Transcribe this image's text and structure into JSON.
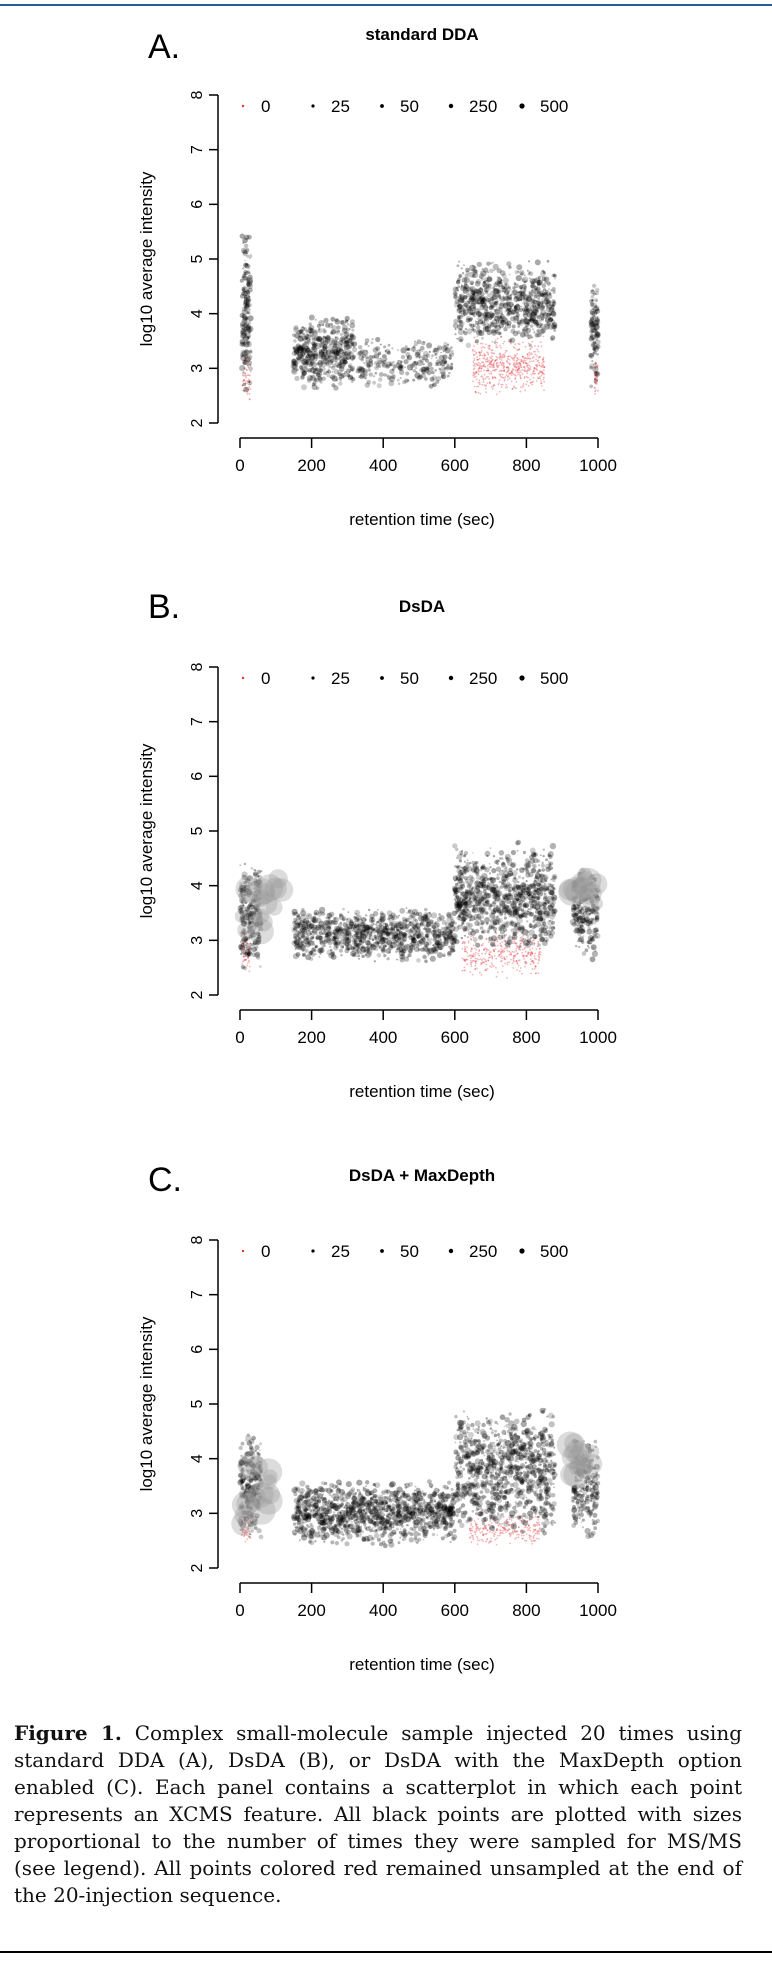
{
  "chart_data": [
    {
      "type": "scatter",
      "panel_letter": "A.",
      "title": "standard DDA",
      "xlabel": "retention time (sec)",
      "ylabel": "log10 average intensity",
      "xlim": [
        0,
        1000
      ],
      "ylim": [
        2,
        8
      ],
      "x_ticks": [
        0,
        200,
        400,
        600,
        800,
        1000
      ],
      "y_ticks": [
        2,
        3,
        4,
        5,
        6,
        7,
        8
      ],
      "grid": false,
      "legend_position": "top",
      "legend": [
        {
          "label": "0",
          "color": "#e0303a"
        },
        {
          "label": "25",
          "color": "#000000"
        },
        {
          "label": "50",
          "color": "#000000"
        },
        {
          "label": "250",
          "color": "#000000"
        },
        {
          "label": "500",
          "color": "#000000"
        }
      ],
      "clusters": [
        {
          "kind": "unsampled",
          "x_range": [
            650,
            850
          ],
          "y_range": [
            2.5,
            3.6
          ],
          "density": 550
        },
        {
          "kind": "unsampled",
          "x_range": [
            5,
            30
          ],
          "y_range": [
            2.4,
            3.3
          ],
          "density": 60
        },
        {
          "kind": "unsampled",
          "x_range": [
            990,
            1000
          ],
          "y_range": [
            2.4,
            3.2
          ],
          "density": 40
        },
        {
          "kind": "sampled",
          "x_range": [
            150,
            320
          ],
          "y_range": [
            2.6,
            4.0
          ],
          "density": 450
        },
        {
          "kind": "sampled",
          "x_range": [
            600,
            880
          ],
          "y_range": [
            3.4,
            5.0
          ],
          "density": 750
        },
        {
          "kind": "sampled",
          "x_range": [
            5,
            30
          ],
          "y_range": [
            2.6,
            5.5
          ],
          "density": 160
        },
        {
          "kind": "sampled",
          "x_range": [
            980,
            1000
          ],
          "y_range": [
            2.6,
            4.6
          ],
          "density": 100
        },
        {
          "kind": "sampled",
          "x_range": [
            330,
            600
          ],
          "y_range": [
            2.6,
            3.6
          ],
          "density": 250
        }
      ]
    },
    {
      "type": "scatter",
      "panel_letter": "B.",
      "title": "DsDA",
      "xlabel": "retention time (sec)",
      "ylabel": "log10 average intensity",
      "xlim": [
        0,
        1000
      ],
      "ylim": [
        2,
        8
      ],
      "x_ticks": [
        0,
        200,
        400,
        600,
        800,
        1000
      ],
      "y_ticks": [
        2,
        3,
        4,
        5,
        6,
        7,
        8
      ],
      "grid": false,
      "legend_position": "top",
      "legend": [
        {
          "label": "0",
          "color": "#e0303a"
        },
        {
          "label": "25",
          "color": "#000000"
        },
        {
          "label": "50",
          "color": "#000000"
        },
        {
          "label": "250",
          "color": "#000000"
        },
        {
          "label": "500",
          "color": "#000000"
        }
      ],
      "clusters": [
        {
          "kind": "unsampled",
          "x_range": [
            620,
            840
          ],
          "y_range": [
            2.3,
            3.2
          ],
          "density": 350
        },
        {
          "kind": "unsampled",
          "x_range": [
            5,
            30
          ],
          "y_range": [
            2.4,
            3.2
          ],
          "density": 60
        },
        {
          "kind": "sampled",
          "x_range": [
            150,
            600
          ],
          "y_range": [
            2.6,
            3.6
          ],
          "density": 900
        },
        {
          "kind": "sampled",
          "x_range": [
            600,
            880
          ],
          "y_range": [
            2.8,
            4.8
          ],
          "density": 900
        },
        {
          "kind": "sampled",
          "x_range": [
            0,
            60
          ],
          "y_range": [
            2.4,
            4.5
          ],
          "density": 250
        },
        {
          "kind": "sampled",
          "x_range": [
            930,
            1000
          ],
          "y_range": [
            2.6,
            4.4
          ],
          "density": 200
        },
        {
          "kind": "large",
          "x_range": [
            0,
            120
          ],
          "y_range": [
            2.8,
            4.3
          ],
          "density": 18
        },
        {
          "kind": "large",
          "x_range": [
            920,
            1000
          ],
          "y_range": [
            3.6,
            4.3
          ],
          "density": 14
        }
      ]
    },
    {
      "type": "scatter",
      "panel_letter": "C.",
      "title": "DsDA + MaxDepth",
      "xlabel": "retention time (sec)",
      "ylabel": "log10 average intensity",
      "xlim": [
        0,
        1000
      ],
      "ylim": [
        2,
        8
      ],
      "x_ticks": [
        0,
        200,
        400,
        600,
        800,
        1000
      ],
      "y_ticks": [
        2,
        3,
        4,
        5,
        6,
        7,
        8
      ],
      "grid": false,
      "legend_position": "top",
      "legend": [
        {
          "label": "0",
          "color": "#e0303a"
        },
        {
          "label": "25",
          "color": "#000000"
        },
        {
          "label": "50",
          "color": "#000000"
        },
        {
          "label": "250",
          "color": "#000000"
        },
        {
          "label": "500",
          "color": "#000000"
        }
      ],
      "clusters": [
        {
          "kind": "unsampled",
          "x_range": [
            640,
            840
          ],
          "y_range": [
            2.4,
            3.0
          ],
          "density": 250
        },
        {
          "kind": "unsampled",
          "x_range": [
            5,
            30
          ],
          "y_range": [
            2.4,
            3.1
          ],
          "density": 50
        },
        {
          "kind": "sampled",
          "x_range": [
            150,
            600
          ],
          "y_range": [
            2.4,
            3.6
          ],
          "density": 1100
        },
        {
          "kind": "sampled",
          "x_range": [
            600,
            880
          ],
          "y_range": [
            2.6,
            5.0
          ],
          "density": 900
        },
        {
          "kind": "sampled",
          "x_range": [
            0,
            60
          ],
          "y_range": [
            2.4,
            4.5
          ],
          "density": 250
        },
        {
          "kind": "sampled",
          "x_range": [
            930,
            1000
          ],
          "y_range": [
            2.5,
            4.4
          ],
          "density": 200
        },
        {
          "kind": "large",
          "x_range": [
            0,
            100
          ],
          "y_range": [
            2.6,
            4.3
          ],
          "density": 14
        },
        {
          "kind": "large",
          "x_range": [
            920,
            1000
          ],
          "y_range": [
            3.6,
            4.3
          ],
          "density": 14
        }
      ]
    }
  ],
  "caption": {
    "label": "Figure 1.",
    "text": "Complex small-molecule sample injected 20 times using standard DDA (A), DsDA (B), or DsDA with the MaxDepth option enabled (C). Each panel contains a scatterplot in which each point represents an XCMS feature. All black points are plotted with sizes proportional to the number of times they were sampled for MS/MS (see legend). All points colored red remained unsampled at the end of the 20-injection sequence."
  }
}
